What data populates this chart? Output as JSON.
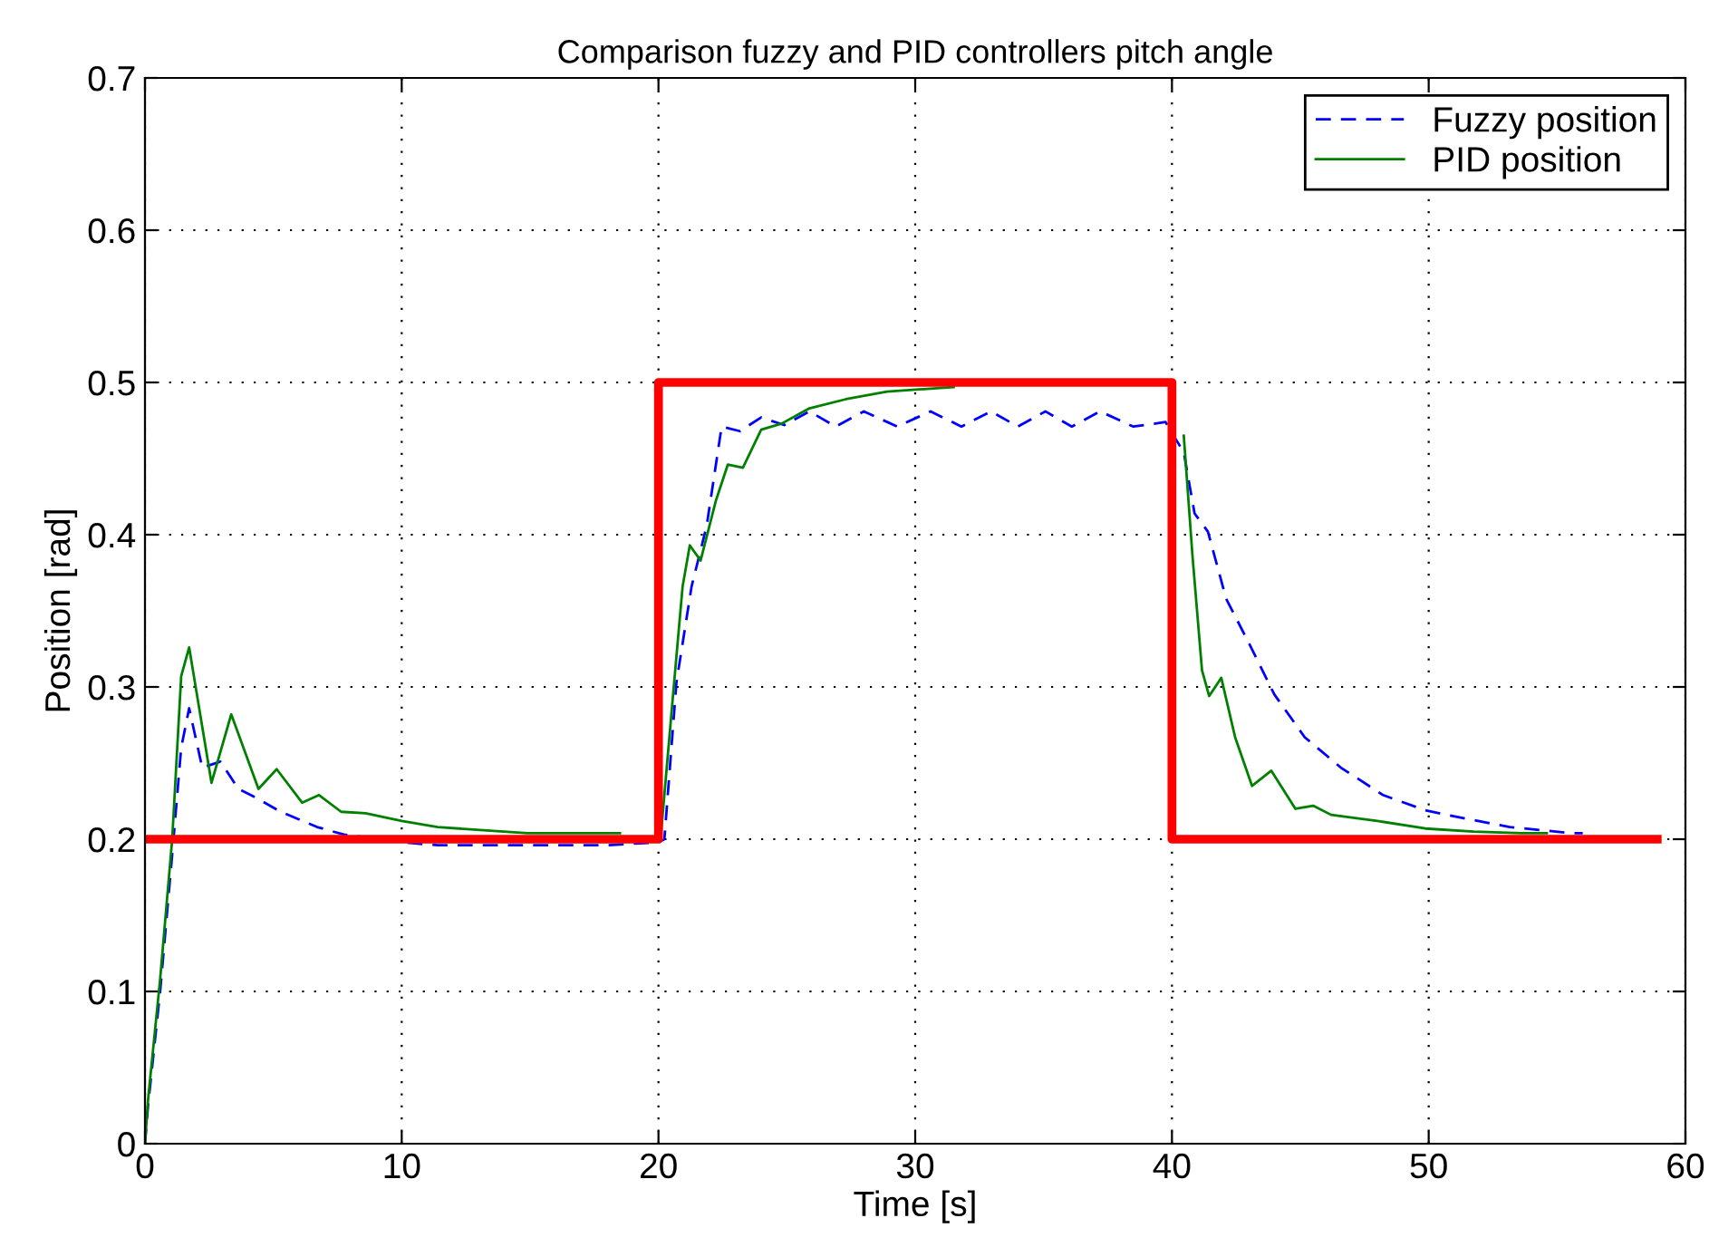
{
  "chart_data": {
    "type": "line",
    "title": "Comparison fuzzy and PID controllers pitch angle",
    "xlabel": "Time [s]",
    "ylabel": "Position [rad]",
    "xlim": [
      0,
      60
    ],
    "xticks": [
      0,
      10,
      20,
      30,
      40,
      50,
      60
    ],
    "ylim": [
      0,
      0.7
    ],
    "yticks": [
      0,
      0.1,
      0.2,
      0.3,
      0.4,
      0.5,
      0.6,
      0.7
    ],
    "grid": true,
    "legend": "top right",
    "marker": "none",
    "series": [
      {
        "name": "Fuzzy position",
        "color": "#0000ff",
        "line_style": "dashed",
        "x": [
          0,
          0.12,
          0.59,
          1.06,
          1.41,
          1.72,
          2.23,
          2.94,
          3.64,
          4.35,
          5.29,
          6.7,
          7.75,
          10.0,
          11.4,
          13.6,
          15.8,
          18.0,
          20.0,
          20.23,
          20.7,
          21.29,
          21.88,
          22.46,
          23.17,
          24.0,
          24.9,
          25.88,
          26.9,
          28.0,
          29.3,
          30.6,
          31.8,
          32.95,
          34.0,
          35.07,
          36.1,
          37.2,
          38.5,
          39.75,
          40.46,
          40.88,
          41.4,
          42.11,
          43.05,
          43.99,
          45.17,
          46.58,
          48.22,
          49.87,
          51.28,
          53.16,
          55.5,
          56.0
        ],
        "values": [
          0,
          0.025,
          0.1,
          0.19,
          0.26,
          0.286,
          0.247,
          0.251,
          0.233,
          0.227,
          0.218,
          0.208,
          0.203,
          0.198,
          0.196,
          0.196,
          0.196,
          0.196,
          0.198,
          0.2,
          0.303,
          0.366,
          0.406,
          0.471,
          0.468,
          0.477,
          0.472,
          0.481,
          0.471,
          0.481,
          0.471,
          0.481,
          0.471,
          0.481,
          0.471,
          0.481,
          0.471,
          0.481,
          0.471,
          0.474,
          0.454,
          0.414,
          0.402,
          0.358,
          0.327,
          0.295,
          0.267,
          0.247,
          0.229,
          0.219,
          0.214,
          0.208,
          0.204,
          0.204
        ]
      },
      {
        "name": "PID position",
        "color": "#008000",
        "line_style": "solid",
        "x": [
          0,
          0.12,
          0.59,
          1.06,
          1.41,
          1.72,
          2.59,
          3.36,
          4.42,
          5.13,
          6.12,
          6.78,
          7.64,
          8.59,
          10.0,
          11.4,
          13.06,
          14.9,
          18.5,
          20.0,
          20.1,
          20.59,
          20.94,
          21.22,
          21.64,
          22.23,
          22.7,
          23.29,
          24.0,
          24.8,
          25.88,
          27.3,
          28.9,
          31.5,
          35.0,
          40.0,
          40.46,
          40.8,
          41.17,
          41.45,
          41.92,
          42.46,
          43.12,
          43.87,
          44.81,
          45.5,
          46.2,
          48.0,
          49.87,
          51.75,
          53.6,
          54.6
        ],
        "values": [
          0,
          0.029,
          0.108,
          0.2,
          0.307,
          0.326,
          0.237,
          0.282,
          0.233,
          0.246,
          0.224,
          0.229,
          0.218,
          0.217,
          0.212,
          0.208,
          0.206,
          0.204,
          0.204,
          null,
          0.204,
          0.299,
          0.366,
          0.393,
          0.383,
          0.422,
          0.446,
          0.444,
          0.469,
          0.473,
          0.483,
          0.489,
          0.494,
          0.497,
          null,
          null,
          0.465,
          0.386,
          0.311,
          0.294,
          0.306,
          0.267,
          0.235,
          0.245,
          0.22,
          0.222,
          0.216,
          0.212,
          0.207,
          0.205,
          0.204,
          0.204
        ]
      },
      {
        "color": "#ff0000",
        "line_style": "solid",
        "x": [
          0,
          20,
          20,
          40,
          40,
          58.9
        ],
        "values": [
          0.2,
          0.2,
          0.5,
          0.5,
          0.2,
          0.2
        ]
      }
    ]
  }
}
